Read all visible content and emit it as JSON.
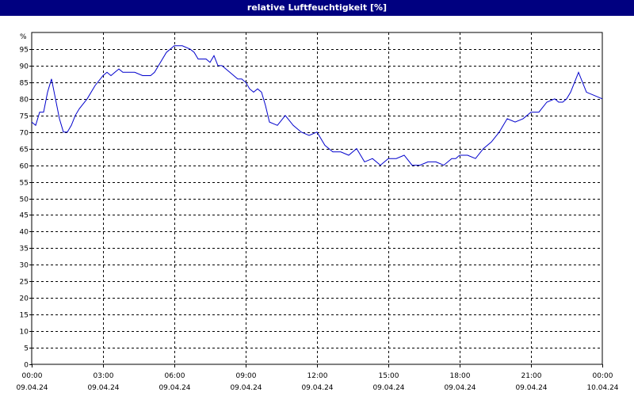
{
  "window": {
    "title": "relative Luftfeuchtigkeit [%]"
  },
  "colors": {
    "title_bar": "#000080",
    "title_text": "#ffffff",
    "line": "#0000cc",
    "grid": "#000000",
    "background": "#ffffff"
  },
  "chart_data": {
    "type": "line",
    "title": "relative Luftfeuchtigkeit [%]",
    "xlabel": "",
    "ylabel": "%",
    "ylim": [
      0,
      100
    ],
    "yticks": [
      0,
      5,
      10,
      15,
      20,
      25,
      30,
      35,
      40,
      45,
      50,
      55,
      60,
      65,
      70,
      75,
      80,
      85,
      90,
      95
    ],
    "xlim": [
      "2024-04-09T00:00",
      "2024-04-10T00:00"
    ],
    "xticks": [
      {
        "time": "00:00",
        "date": "09.04.24"
      },
      {
        "time": "03:00",
        "date": "09.04.24"
      },
      {
        "time": "06:00",
        "date": "09.04.24"
      },
      {
        "time": "09:00",
        "date": "09.04.24"
      },
      {
        "time": "12:00",
        "date": "09.04.24"
      },
      {
        "time": "15:00",
        "date": "09.04.24"
      },
      {
        "time": "18:00",
        "date": "09.04.24"
      },
      {
        "time": "21:00",
        "date": "09.04.24"
      },
      {
        "time": "00:00",
        "date": "10.04.24"
      }
    ],
    "grid": true,
    "series": [
      {
        "x": [
          "2024-04-09T00:00",
          "2024-04-09T00:10",
          "2024-04-09T00:20",
          "2024-04-09T00:30",
          "2024-04-09T00:40",
          "2024-04-09T00:50",
          "2024-04-09T01:00",
          "2024-04-09T01:10",
          "2024-04-09T01:20",
          "2024-04-09T01:30",
          "2024-04-09T01:40",
          "2024-04-09T01:50",
          "2024-04-09T02:00",
          "2024-04-09T02:20",
          "2024-04-09T02:40",
          "2024-04-09T03:00",
          "2024-04-09T03:10",
          "2024-04-09T03:20",
          "2024-04-09T03:30",
          "2024-04-09T03:40",
          "2024-04-09T03:50",
          "2024-04-09T04:00",
          "2024-04-09T04:20",
          "2024-04-09T04:40",
          "2024-04-09T05:00",
          "2024-04-09T05:10",
          "2024-04-09T05:20",
          "2024-04-09T05:40",
          "2024-04-09T06:00",
          "2024-04-09T06:20",
          "2024-04-09T06:40",
          "2024-04-09T06:50",
          "2024-04-09T07:00",
          "2024-04-09T07:10",
          "2024-04-09T07:20",
          "2024-04-09T07:30",
          "2024-04-09T07:40",
          "2024-04-09T07:50",
          "2024-04-09T08:00",
          "2024-04-09T08:20",
          "2024-04-09T08:40",
          "2024-04-09T08:50",
          "2024-04-09T09:00",
          "2024-04-09T09:10",
          "2024-04-09T09:20",
          "2024-04-09T09:30",
          "2024-04-09T09:40",
          "2024-04-09T09:50",
          "2024-04-09T10:00",
          "2024-04-09T10:20",
          "2024-04-09T10:40",
          "2024-04-09T11:00",
          "2024-04-09T11:20",
          "2024-04-09T11:40",
          "2024-04-09T12:00",
          "2024-04-09T12:20",
          "2024-04-09T12:40",
          "2024-04-09T13:00",
          "2024-04-09T13:20",
          "2024-04-09T13:40",
          "2024-04-09T14:00",
          "2024-04-09T14:20",
          "2024-04-09T14:40",
          "2024-04-09T15:00",
          "2024-04-09T15:20",
          "2024-04-09T15:40",
          "2024-04-09T16:00",
          "2024-04-09T16:20",
          "2024-04-09T16:40",
          "2024-04-09T17:00",
          "2024-04-09T17:20",
          "2024-04-09T17:40",
          "2024-04-09T17:50",
          "2024-04-09T18:00",
          "2024-04-09T18:20",
          "2024-04-09T18:40",
          "2024-04-09T19:00",
          "2024-04-09T19:20",
          "2024-04-09T19:40",
          "2024-04-09T20:00",
          "2024-04-09T20:20",
          "2024-04-09T20:40",
          "2024-04-09T21:00",
          "2024-04-09T21:20",
          "2024-04-09T21:40",
          "2024-04-09T22:00",
          "2024-04-09T22:10",
          "2024-04-09T22:20",
          "2024-04-09T22:30",
          "2024-04-09T22:40",
          "2024-04-09T22:50",
          "2024-04-09T23:00",
          "2024-04-09T23:20",
          "2024-04-09T23:40",
          "2024-04-10T00:00"
        ],
        "y": [
          73,
          72,
          76,
          76,
          82,
          86,
          80,
          74,
          70,
          70,
          72,
          75,
          77,
          80,
          84,
          87,
          88,
          87,
          88,
          89,
          88,
          88,
          88,
          87,
          87,
          88,
          90,
          94,
          96,
          96,
          95,
          94,
          92,
          92,
          92,
          91,
          93,
          90,
          90,
          88,
          86,
          86,
          85,
          83,
          82,
          83,
          82,
          78,
          73,
          72,
          75,
          72,
          70,
          69,
          70,
          66,
          64,
          64,
          63,
          65,
          61,
          62,
          60,
          62,
          62,
          63,
          60,
          60,
          61,
          61,
          60,
          62,
          62,
          63,
          63,
          62,
          65,
          67,
          70,
          74,
          73,
          74,
          76,
          76,
          79,
          80,
          79,
          79,
          80,
          82,
          85,
          88,
          82,
          81,
          80
        ]
      }
    ]
  }
}
